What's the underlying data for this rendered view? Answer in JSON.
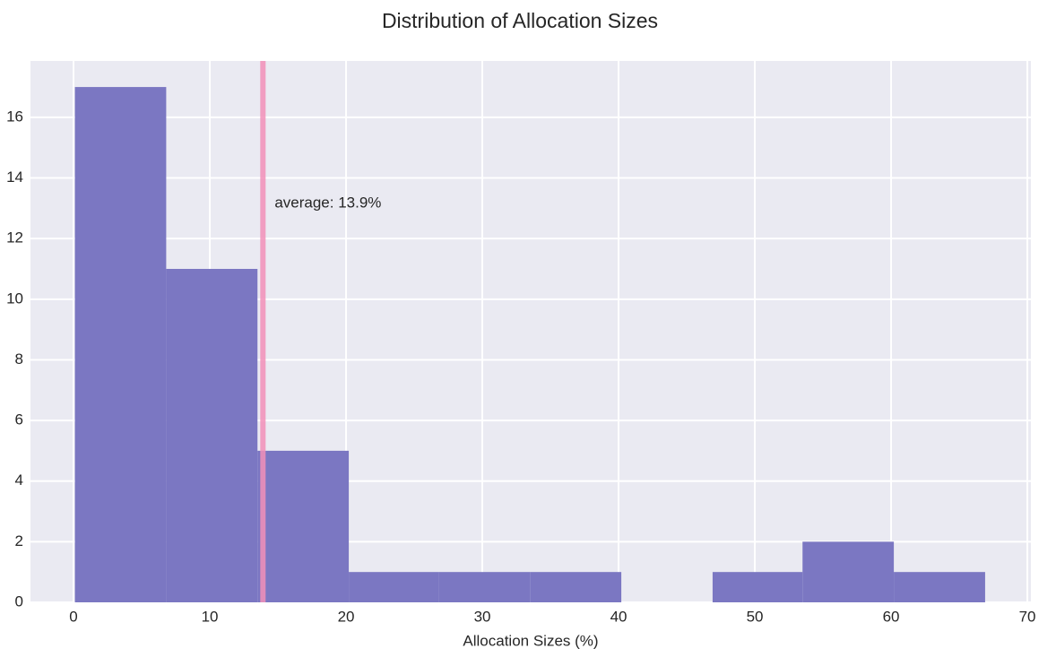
{
  "chart_data": {
    "type": "histogram",
    "title": "Distribution of Allocation Sizes",
    "x_label": "Allocation Sizes (%)",
    "bins": [
      0.1,
      6.8,
      13.5,
      20.2,
      26.8,
      33.5,
      40.2,
      46.9,
      53.5,
      60.2,
      66.9
    ],
    "values": [
      17,
      11,
      5,
      1,
      1,
      1,
      0,
      1,
      2,
      1
    ],
    "color": "#7b77c2",
    "reference_line": {
      "value": 13.9,
      "label": "average: 13.9%",
      "color": "#f28fb8"
    },
    "xlim": [
      -3.16,
      70.26
    ],
    "xticks": [
      0,
      10,
      20,
      30,
      40,
      50,
      60,
      70
    ],
    "ylim": [
      0,
      17.86
    ],
    "yticks": [
      0,
      2,
      4,
      6,
      8,
      10,
      12,
      14,
      16
    ],
    "grid": true
  }
}
